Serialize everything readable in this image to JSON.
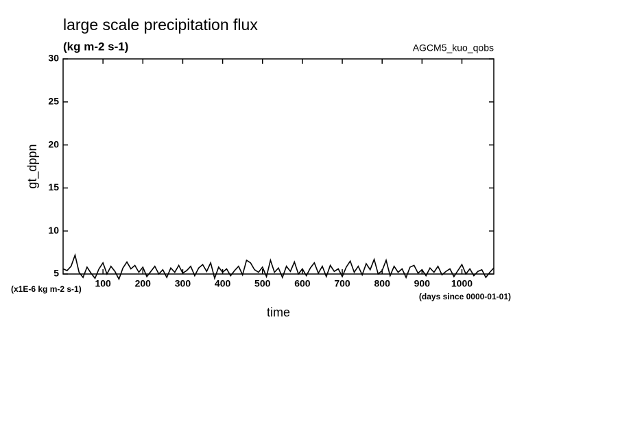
{
  "chart_data": {
    "type": "line",
    "title": "large scale precipitation flux",
    "subtitle": "(kg m-2 s-1)",
    "annotation": "AGCM5_kuo_qobs",
    "ylabel": "gt_dppn",
    "xlabel": "time",
    "y_unit": "(x1E-6 kg m-2 s-1)",
    "x_unit": "(days since 0000-01-01)",
    "color": "#000000",
    "xlim": [
      0,
      1080
    ],
    "ylim": [
      5,
      30
    ],
    "xticks": [
      100,
      200,
      300,
      400,
      500,
      600,
      700,
      800,
      900,
      1000
    ],
    "yticks": [
      5,
      10,
      15,
      20,
      25,
      30
    ],
    "x": [
      0,
      10,
      20,
      30,
      40,
      50,
      60,
      70,
      80,
      90,
      100,
      110,
      120,
      130,
      140,
      150,
      160,
      170,
      180,
      190,
      200,
      210,
      220,
      230,
      240,
      250,
      260,
      270,
      280,
      290,
      300,
      310,
      320,
      330,
      340,
      350,
      360,
      370,
      380,
      390,
      400,
      410,
      420,
      430,
      440,
      450,
      460,
      470,
      480,
      490,
      500,
      510,
      520,
      530,
      540,
      550,
      560,
      570,
      580,
      590,
      600,
      610,
      620,
      630,
      640,
      650,
      660,
      670,
      680,
      690,
      700,
      710,
      720,
      730,
      740,
      750,
      760,
      770,
      780,
      790,
      800,
      810,
      820,
      830,
      840,
      850,
      860,
      870,
      880,
      890,
      900,
      910,
      920,
      930,
      940,
      950,
      960,
      970,
      980,
      990,
      1000,
      1010,
      1020,
      1030,
      1040,
      1050,
      1060,
      1070,
      1080
    ],
    "values": [
      5.6,
      5.4,
      5.9,
      7.2,
      5.2,
      4.6,
      5.8,
      5.1,
      4.5,
      5.6,
      6.3,
      5.0,
      5.9,
      5.3,
      4.4,
      5.7,
      6.4,
      5.6,
      6.0,
      5.2,
      5.8,
      4.7,
      5.3,
      5.9,
      5.0,
      5.5,
      4.6,
      5.7,
      5.2,
      6.0,
      5.1,
      5.4,
      5.9,
      4.8,
      5.7,
      6.1,
      5.3,
      6.3,
      4.5,
      5.8,
      5.2,
      5.6,
      4.8,
      5.4,
      5.9,
      4.9,
      6.6,
      6.3,
      5.5,
      5.2,
      5.8,
      4.7,
      6.6,
      5.2,
      5.7,
      4.6,
      5.9,
      5.3,
      6.4,
      5.0,
      5.6,
      4.8,
      5.7,
      6.3,
      5.1,
      5.9,
      4.7,
      6.0,
      5.3,
      5.6,
      4.7,
      5.8,
      6.5,
      5.2,
      5.9,
      4.9,
      6.2,
      5.5,
      6.7,
      5.0,
      5.4,
      6.6,
      4.8,
      5.9,
      5.2,
      5.6,
      4.6,
      5.8,
      6.0,
      5.1,
      5.5,
      4.8,
      5.7,
      5.2,
      5.9,
      4.9,
      5.3,
      5.6,
      4.7,
      5.4,
      6.1,
      5.0,
      5.6,
      4.8,
      5.3,
      5.5,
      4.6,
      5.2,
      5.7
    ]
  }
}
